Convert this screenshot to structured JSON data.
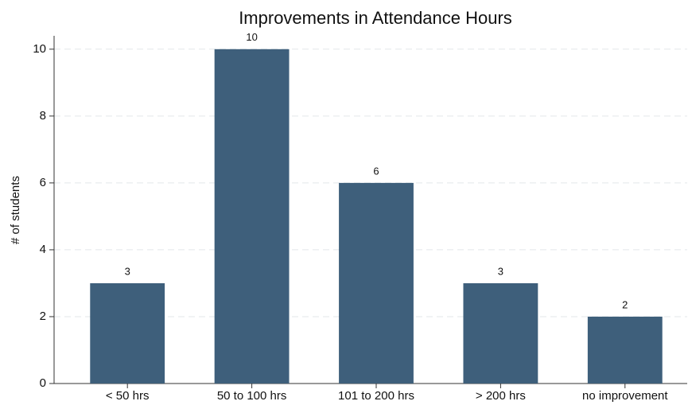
{
  "chart_data": {
    "type": "bar",
    "title": "Improvements in Attendance Hours",
    "y_label": "# of students",
    "categories": [
      "< 50 hrs",
      "50 to 100 hrs",
      "101 to 200 hrs",
      "> 200 hrs",
      "no improvement"
    ],
    "values": [
      3,
      10,
      6,
      3,
      2
    ],
    "color": "#3e5f7b",
    "ylim": [
      0,
      10.4
    ],
    "yticks": [
      0,
      2,
      4,
      6,
      8,
      10
    ],
    "grid": true
  }
}
